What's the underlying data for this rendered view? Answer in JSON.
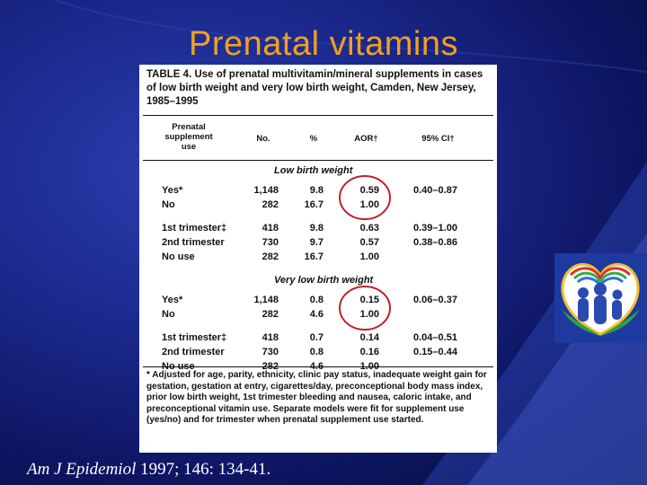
{
  "title": "Prenatal vitamins",
  "table": {
    "caption_label": "TABLE 4.",
    "caption_text": "Use of prenatal multivitamin/mineral supplements in cases of low birth weight and very low birth weight, Camden, New Jersey, 1985–1995",
    "headers": {
      "label": [
        "Prenatal",
        "supplement",
        "use"
      ],
      "n": "No.",
      "pct": "%",
      "aor": "AOR†",
      "ci": "95% CI†"
    },
    "sections": [
      {
        "name": "Low birth weight",
        "groups": [
          [
            {
              "label": "Yes*",
              "n": "1,148",
              "pct": "9.8",
              "aor": "0.59",
              "ci": "0.40–0.87"
            },
            {
              "label": "No",
              "n": "282",
              "pct": "16.7",
              "aor": "1.00",
              "ci": ""
            }
          ],
          [
            {
              "label": "1st trimester‡",
              "n": "418",
              "pct": "9.8",
              "aor": "0.63",
              "ci": "0.39–1.00"
            },
            {
              "label": "2nd trimester",
              "n": "730",
              "pct": "9.7",
              "aor": "0.57",
              "ci": "0.38–0.86"
            },
            {
              "label": "No use",
              "n": "282",
              "pct": "16.7",
              "aor": "1.00",
              "ci": ""
            }
          ]
        ]
      },
      {
        "name": "Very low birth weight",
        "groups": [
          [
            {
              "label": "Yes*",
              "n": "1,148",
              "pct": "0.8",
              "aor": "0.15",
              "ci": "0.06–0.37"
            },
            {
              "label": "No",
              "n": "282",
              "pct": "4.6",
              "aor": "1.00",
              "ci": ""
            }
          ],
          [
            {
              "label": "1st trimester‡",
              "n": "418",
              "pct": "0.7",
              "aor": "0.14",
              "ci": "0.04–0.51"
            },
            {
              "label": "2nd trimester",
              "n": "730",
              "pct": "0.8",
              "aor": "0.16",
              "ci": "0.15–0.44"
            },
            {
              "label": "No use",
              "n": "282",
              "pct": "4.6",
              "aor": "1.00",
              "ci": ""
            }
          ]
        ]
      }
    ],
    "footnote": "* Adjusted for age, parity, ethnicity, clinic pay status, inadequate weight gain for gestation, gestation at entry, cigarettes/day, preconceptional body mass index, prior low birth weight, 1st trimester bleeding and nausea, caloric intake, and preconceptional vitamin use. Separate models were fit for supplement use (yes/no) and for trimester when prenatal supplement use started."
  },
  "citation": {
    "journal": "Am J Epidemiol",
    "details": " 1997; 146: 134-41."
  },
  "colors": {
    "title": "#f0a020",
    "highlight_circle": "#c0202a",
    "background": "#1c2a8f"
  },
  "icons": [
    "family-heart-logo-icon"
  ]
}
